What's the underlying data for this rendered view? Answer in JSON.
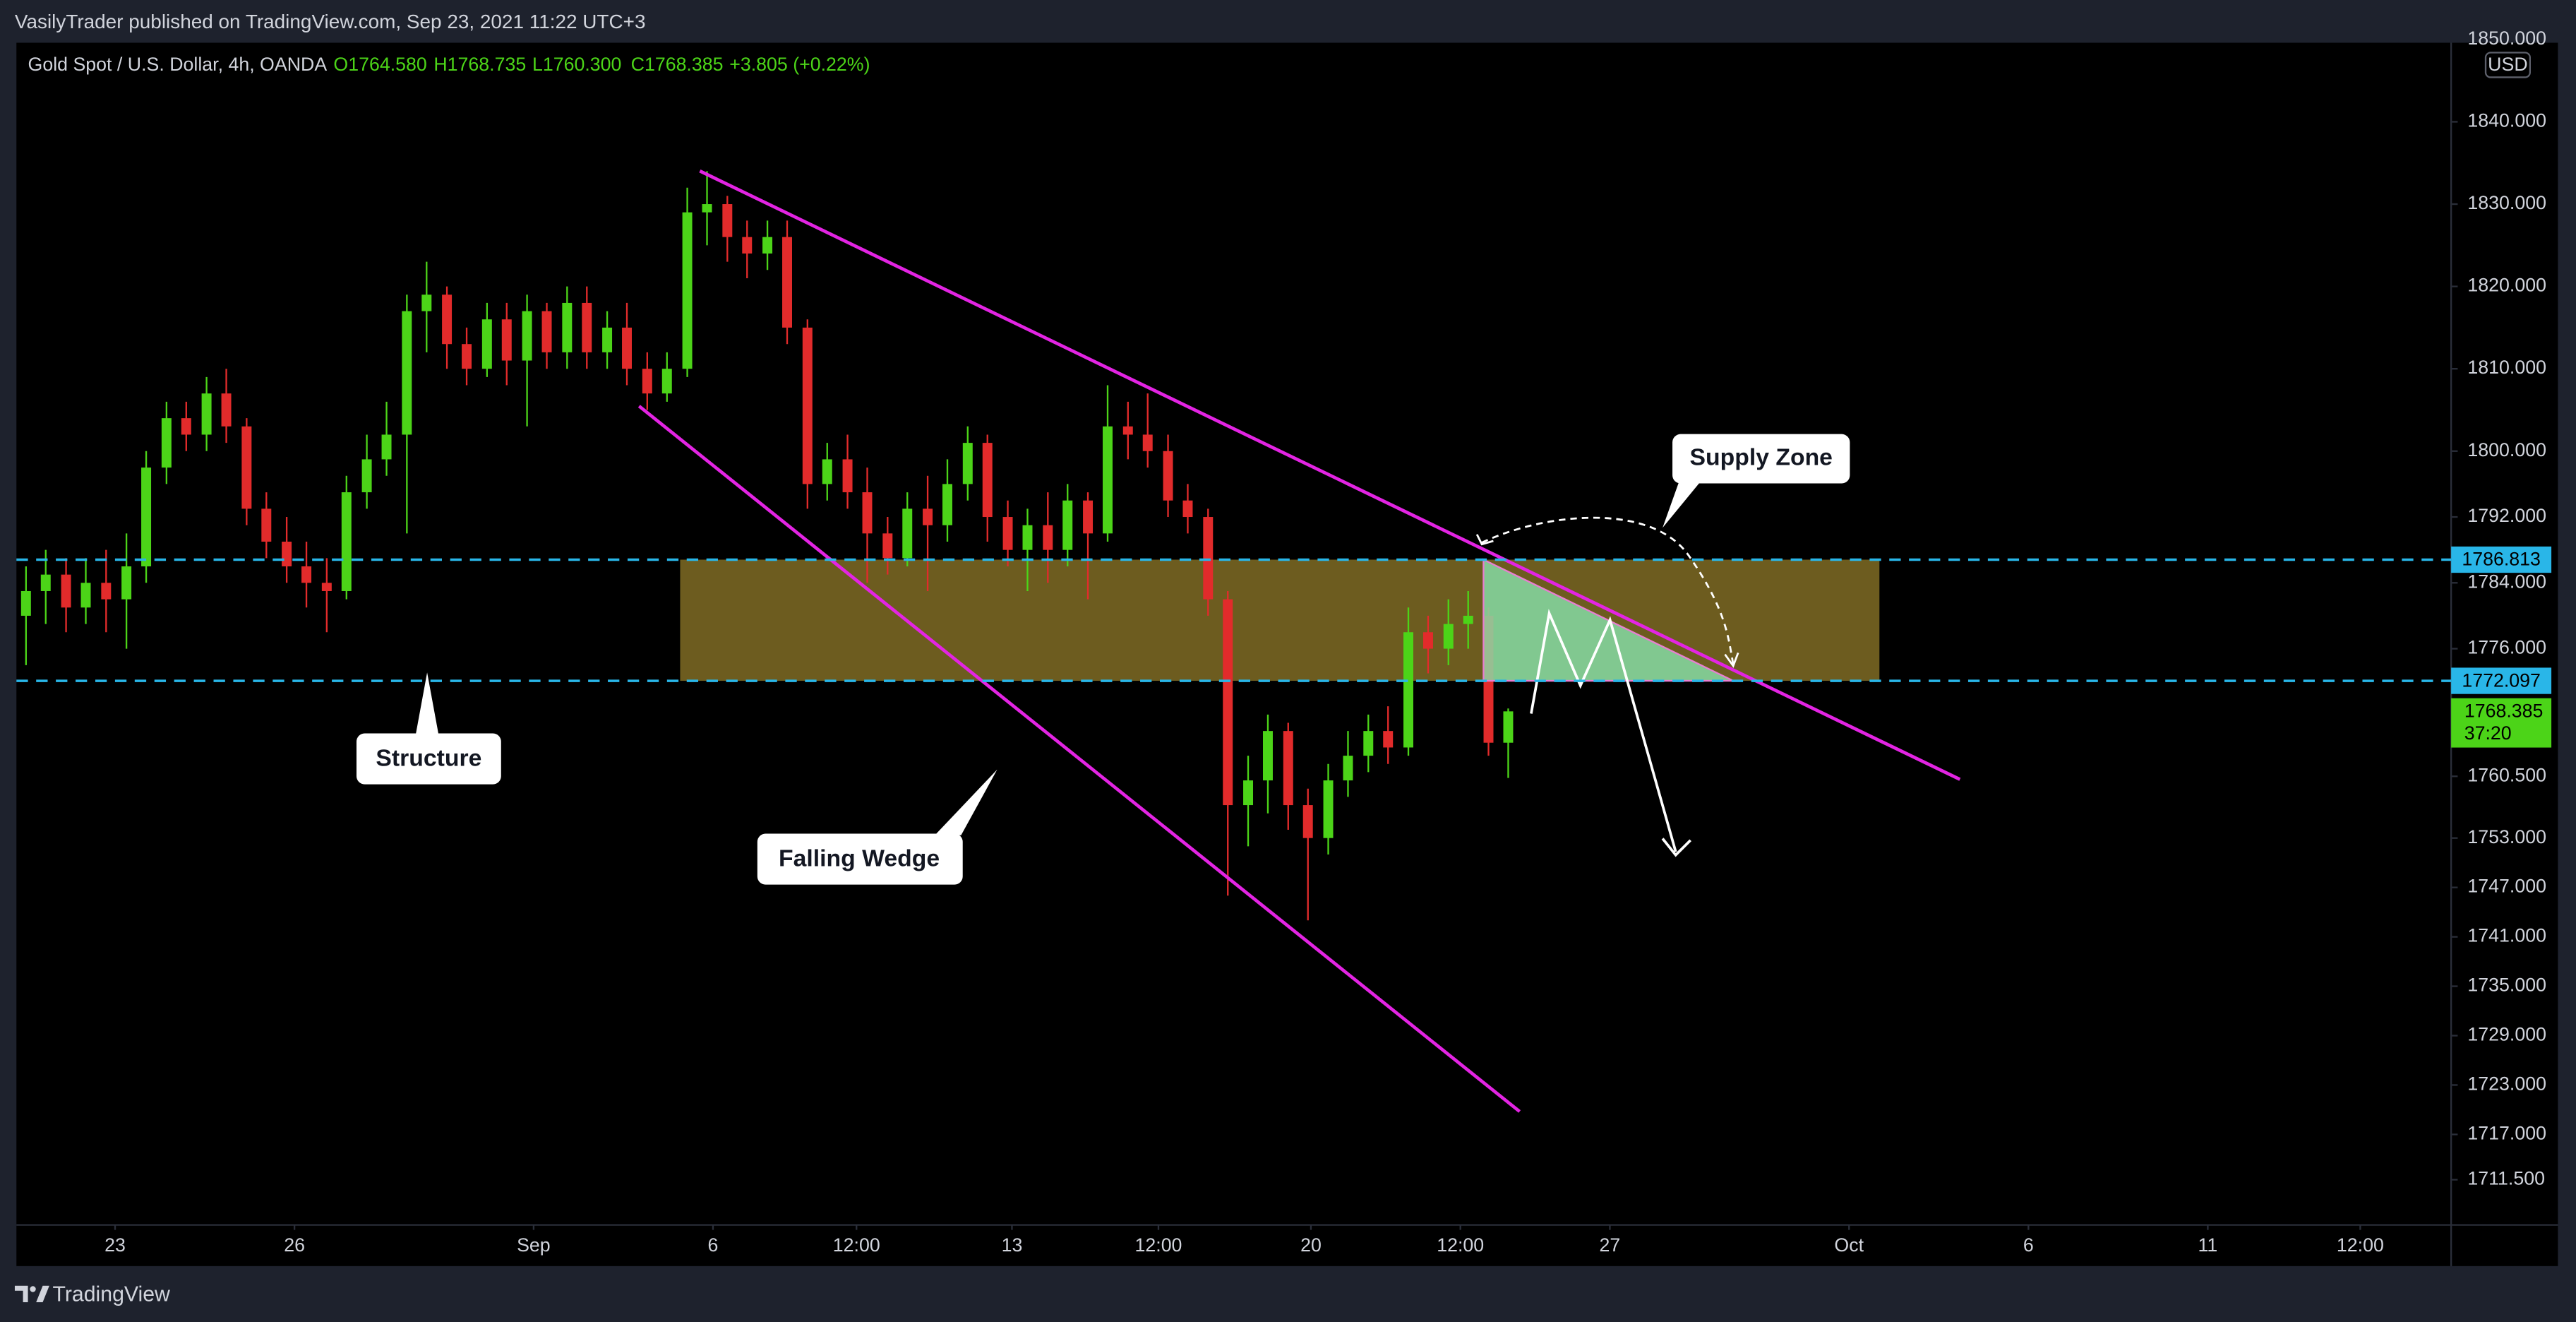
{
  "publisher_line": "VasilyTrader published on TradingView.com, Sep 23, 2021 11:22 UTC+3",
  "brand": "TradingView",
  "annotations": {
    "supply_zone": "Supply Zone",
    "structure": "Structure",
    "falling_wedge": "Falling Wedge"
  },
  "chart_data": {
    "type": "candlestick",
    "symbol": "Gold Spot / U.S. Dollar, 4h, OANDA",
    "legend_values": [
      "O1764.580",
      "H1768.735",
      "L1760.300",
      "C1768.385",
      "+3.805 (+0.22%)"
    ],
    "currency": "USD",
    "up_color": "#4cd418",
    "down_color": "#e22b2b",
    "x": [
      -1.49,
      -1.16,
      -0.82,
      -0.49,
      -0.15,
      0.19,
      0.52,
      0.86,
      1.19,
      1.53,
      1.86,
      2.2,
      2.53,
      2.87,
      3.2,
      3.54,
      3.87,
      4.21,
      4.54,
      4.88,
      5.21,
      5.55,
      5.88,
      6.22,
      6.55,
      6.89,
      7.22,
      7.56,
      7.89,
      8.23,
      8.56,
      8.9,
      9.23,
      9.57,
      9.9,
      10.24,
      10.57,
      10.91,
      11.24,
      11.58,
      11.91,
      12.25,
      12.58,
      12.92,
      13.25,
      13.59,
      13.92,
      14.26,
      14.59,
      14.93,
      15.26,
      15.6,
      15.93,
      16.27,
      16.6,
      16.94,
      17.27,
      17.61,
      17.94,
      18.28,
      18.61,
      18.95,
      19.28,
      19.62,
      19.95,
      20.29,
      20.62,
      20.96,
      21.29,
      21.63,
      21.96,
      22.3,
      22.63,
      22.97,
      23.3
    ],
    "open": [
      1780,
      1783,
      1785,
      1781,
      1784,
      1782,
      1786,
      1798,
      1804,
      1802,
      1807,
      1803,
      1793,
      1789,
      1786,
      1784,
      1783,
      1795,
      1799,
      1802,
      1817,
      1819,
      1813,
      1810,
      1816,
      1811,
      1817,
      1812,
      1818,
      1812,
      1815,
      1810,
      1807,
      1810,
      1829,
      1830,
      1826,
      1824,
      1826,
      1815,
      1796,
      1799,
      1795,
      1790,
      1787,
      1793,
      1791,
      1796,
      1801,
      1792,
      1788,
      1791,
      1788,
      1794,
      1790,
      1803,
      1802,
      1800,
      1794,
      1792,
      1782,
      1757,
      1760,
      1766,
      1757,
      1753,
      1760,
      1763,
      1766,
      1764,
      1778,
      1776,
      1779,
      1780,
      1764.58
    ],
    "high": [
      1786,
      1788,
      1787,
      1787,
      1788,
      1790,
      1800,
      1806,
      1806,
      1809,
      1810,
      1804,
      1795,
      1792,
      1789,
      1787,
      1797,
      1802,
      1806,
      1819,
      1823,
      1820,
      1815,
      1818,
      1818,
      1819,
      1818,
      1820,
      1820,
      1817,
      1818,
      1812,
      1812,
      1832,
      1834,
      1831,
      1828,
      1828,
      1828,
      1816,
      1801,
      1802,
      1798,
      1792,
      1795,
      1797,
      1799,
      1803,
      1802,
      1794,
      1793,
      1795,
      1796,
      1795,
      1808,
      1806,
      1807,
      1802,
      1796,
      1793,
      1783,
      1763,
      1768,
      1767,
      1759,
      1762,
      1766,
      1768,
      1769,
      1781,
      1780,
      1782,
      1783,
      1781,
      1768.735
    ],
    "low": [
      1774,
      1779,
      1778,
      1779,
      1778,
      1776,
      1784,
      1796,
      1800,
      1800,
      1801,
      1791,
      1787,
      1784,
      1781,
      1778,
      1782,
      1793,
      1797,
      1790,
      1812,
      1810,
      1808,
      1809,
      1808,
      1803,
      1810,
      1810,
      1810,
      1810,
      1808,
      1805,
      1806,
      1809,
      1825,
      1823,
      1821,
      1822,
      1813,
      1793,
      1794,
      1793,
      1784,
      1785,
      1786,
      1783,
      1789,
      1794,
      1789,
      1786,
      1783,
      1784,
      1786,
      1782,
      1789,
      1799,
      1798,
      1792,
      1790,
      1780,
      1746,
      1752,
      1756,
      1754,
      1743,
      1751,
      1758,
      1761,
      1762,
      1763,
      1773,
      1774,
      1776,
      1763,
      1760.3
    ],
    "close": [
      1783,
      1785,
      1781,
      1784,
      1782,
      1786,
      1798,
      1804,
      1802,
      1807,
      1803,
      1793,
      1789,
      1786,
      1784,
      1783,
      1795,
      1799,
      1802,
      1817,
      1819,
      1813,
      1810,
      1816,
      1811,
      1817,
      1812,
      1818,
      1812,
      1815,
      1810,
      1807,
      1810,
      1829,
      1830,
      1826,
      1824,
      1826,
      1815,
      1796,
      1799,
      1795,
      1790,
      1787,
      1793,
      1791,
      1796,
      1801,
      1792,
      1788,
      1791,
      1788,
      1794,
      1790,
      1803,
      1802,
      1800,
      1794,
      1792,
      1782,
      1757,
      1760,
      1766,
      1757,
      1753,
      1760,
      1763,
      1766,
      1764,
      1778,
      1776,
      1779,
      1780,
      1764.58,
      1768.385
    ],
    "xlim": [
      -1.65,
      39.07
    ],
    "xticks": [
      {
        "value": 0,
        "label": "23"
      },
      {
        "value": 3,
        "label": "26"
      },
      {
        "value": 7,
        "label": "Sep"
      },
      {
        "value": 10,
        "label": "6"
      },
      {
        "value": 12.4,
        "label": "12:00"
      },
      {
        "value": 15,
        "label": "13"
      },
      {
        "value": 17.45,
        "label": "12:00"
      },
      {
        "value": 20,
        "label": "20"
      },
      {
        "value": 22.5,
        "label": "12:00"
      },
      {
        "value": 25,
        "label": "27"
      },
      {
        "value": 29,
        "label": "Oct"
      },
      {
        "value": 32,
        "label": "6"
      },
      {
        "value": 35,
        "label": "11"
      },
      {
        "value": 37.55,
        "label": "12:00"
      }
    ],
    "ylim": [
      1706,
      1849.6
    ],
    "yticks": [
      {
        "value": 1850,
        "label": "1850.000"
      },
      {
        "value": 1840,
        "label": "1840.000"
      },
      {
        "value": 1830,
        "label": "1830.000"
      },
      {
        "value": 1820,
        "label": "1820.000"
      },
      {
        "value": 1810,
        "label": "1810.000"
      },
      {
        "value": 1800,
        "label": "1800.000"
      },
      {
        "value": 1792,
        "label": "1792.000"
      },
      {
        "value": 1784,
        "label": "1784.000"
      },
      {
        "value": 1776,
        "label": "1776.000"
      },
      {
        "value": 1760.5,
        "label": "1760.500"
      },
      {
        "value": 1753,
        "label": "1753.000"
      },
      {
        "value": 1747,
        "label": "1747.000"
      },
      {
        "value": 1741,
        "label": "1741.000"
      },
      {
        "value": 1735,
        "label": "1735.000"
      },
      {
        "value": 1729,
        "label": "1729.000"
      },
      {
        "value": 1723,
        "label": "1723.000"
      },
      {
        "value": 1717,
        "label": "1717.000"
      },
      {
        "value": 1711.5,
        "label": "1711.500"
      }
    ],
    "grid": false,
    "hlines": [
      1786.813,
      1772.097
    ],
    "hline_color": "#29b6e8",
    "zone_color": "#6d5c1f",
    "last_price": 1768.385,
    "countdown": "37:20"
  }
}
